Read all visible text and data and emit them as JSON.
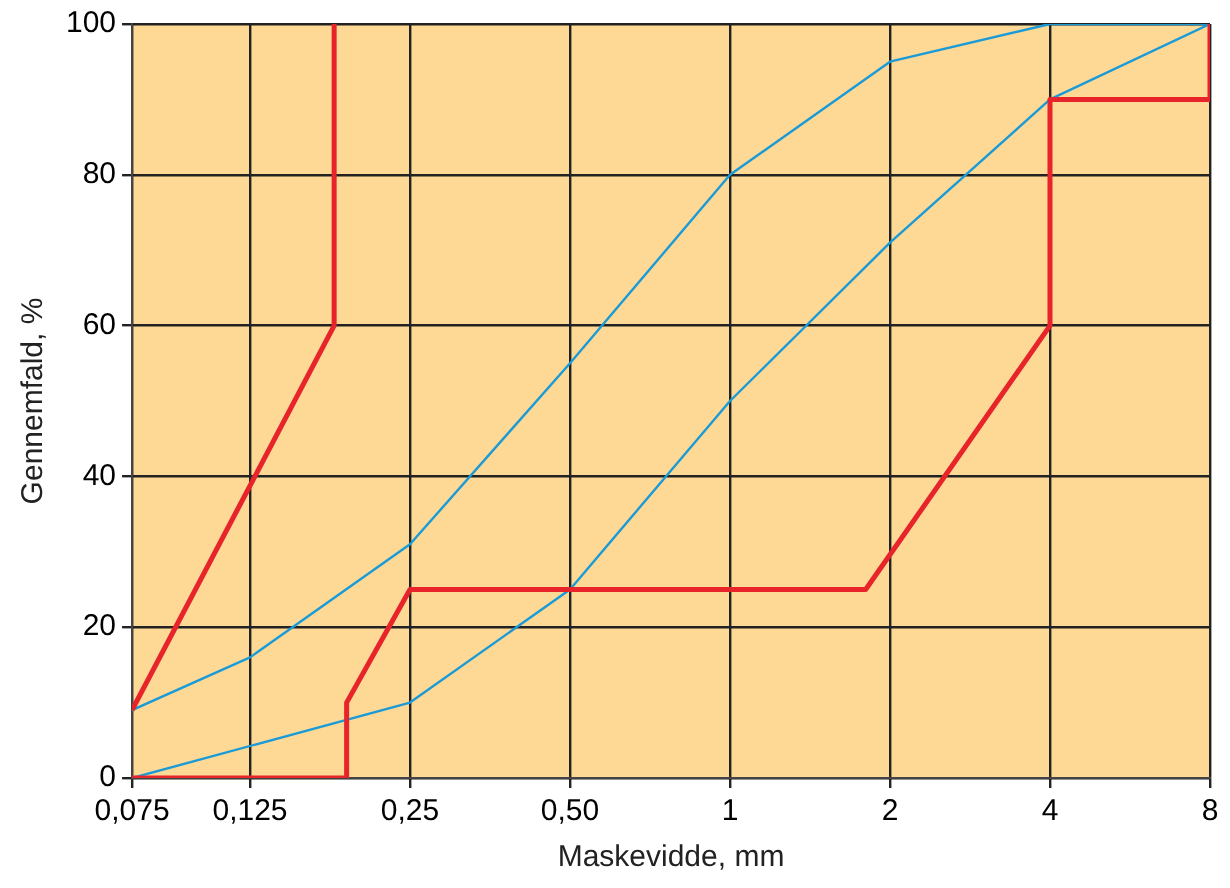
{
  "chart_data": {
    "type": "line",
    "xlabel": "Maskevidde, mm",
    "ylabel": "Gennemfald, %",
    "xlim": [
      0.075,
      8
    ],
    "xticks": [
      {
        "value": 0.075,
        "label": "0,075"
      },
      {
        "value": 0.125,
        "label": "0,125"
      },
      {
        "value": 0.25,
        "label": "0,25"
      },
      {
        "value": 0.5,
        "label": "0,50"
      },
      1,
      2,
      4,
      8
    ],
    "ylim": [
      0,
      100
    ],
    "yticks": [
      0,
      20,
      40,
      60,
      80,
      100
    ],
    "log": "x",
    "grid": true,
    "legend": false,
    "marker": "none",
    "line_style": "solid",
    "series": [
      {
        "color": "#e8242b",
        "x": [
          0.075,
          0.18,
          0.18
        ],
        "values": [
          9,
          60,
          100
        ]
      },
      {
        "color": "#e8242b",
        "x": [
          0.075,
          0.19,
          0.19,
          0.25,
          1.8,
          4,
          4,
          8,
          8
        ],
        "values": [
          0,
          0,
          10,
          25,
          25,
          60,
          90,
          90,
          100
        ]
      },
      {
        "color": "#1a9bd7",
        "x": [
          0.075,
          0.125,
          0.25,
          0.5,
          1,
          2,
          4,
          8
        ],
        "values": [
          9,
          16,
          31,
          55,
          80,
          95,
          100,
          100
        ]
      },
      {
        "color": "#1a9bd7",
        "x": [
          0.075,
          0.25,
          0.5,
          1,
          2,
          4,
          8
        ],
        "values": [
          0,
          10,
          25,
          50,
          71,
          90,
          100
        ]
      }
    ]
  }
}
